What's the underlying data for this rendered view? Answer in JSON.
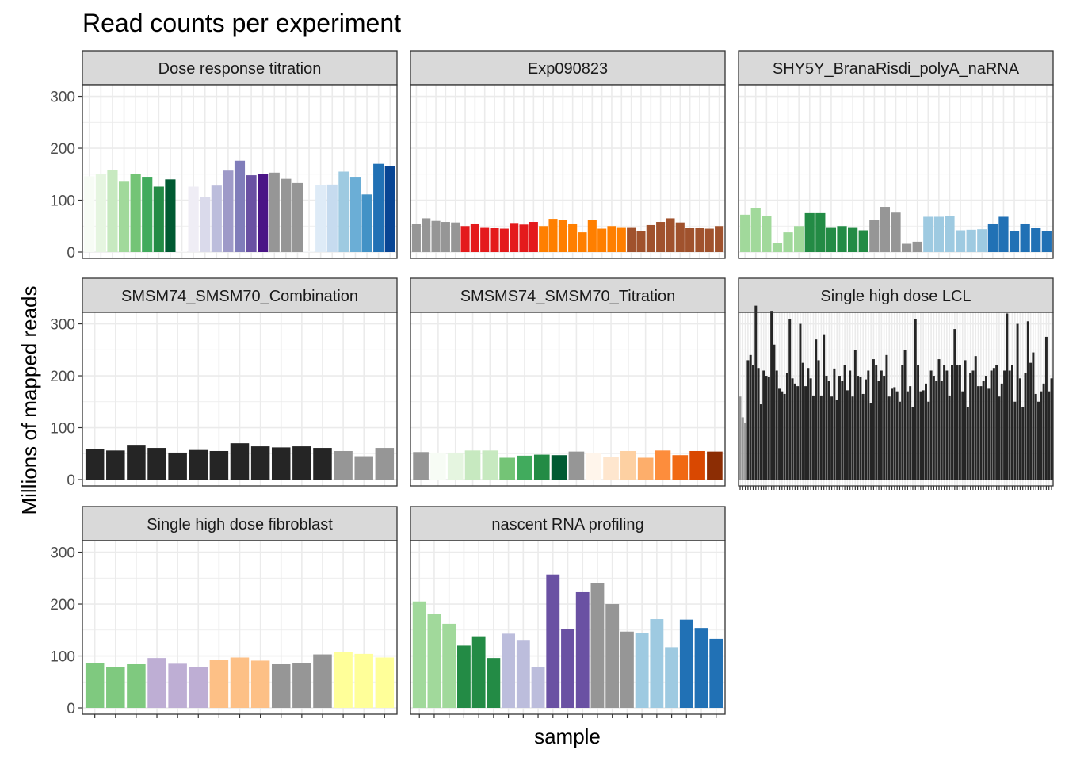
{
  "chart_data": {
    "type": "bar",
    "title": "Read counts per experiment",
    "xlabel": "sample",
    "ylabel": "Millions of mapped reads",
    "ylim": [
      0,
      310
    ],
    "y_ticks": [
      0,
      100,
      200,
      300
    ],
    "grid": true,
    "legend": "none",
    "facets": [
      {
        "name": "Dose response titration",
        "values": [
          146,
          150,
          158,
          137,
          150,
          145,
          126,
          140,
          1,
          126,
          106,
          128,
          157,
          176,
          148,
          151,
          153,
          141,
          133,
          1,
          129,
          130,
          155,
          145,
          111,
          170,
          165
        ],
        "colors": [
          "#f7fcf5",
          "#e5f5e0",
          "#c7e9c0",
          "#a1d99b",
          "#74c476",
          "#41ab5d",
          "#238b45",
          "#005a32",
          "#fcfbfd",
          "#efedf5",
          "#dadaeb",
          "#bcbddc",
          "#9e9ac8",
          "#807dba",
          "#6a51a3",
          "#4a1486",
          "#969696",
          "#969696",
          "#969696",
          "#f7fbff",
          "#deebf7",
          "#c6dbef",
          "#9ecae1",
          "#6baed6",
          "#4292c6",
          "#2171b5",
          "#084594"
        ]
      },
      {
        "name": "Exp090823",
        "values": [
          55,
          65,
          60,
          58,
          57,
          50,
          55,
          48,
          47,
          45,
          56,
          53,
          58,
          50,
          64,
          62,
          55,
          38,
          62,
          45,
          50,
          48,
          48,
          40,
          52,
          58,
          65,
          57,
          47,
          46,
          45,
          50
        ],
        "colors": [
          "#969696",
          "#969696",
          "#969696",
          "#969696",
          "#969696",
          "#e41a1c",
          "#e41a1c",
          "#e41a1c",
          "#e41a1c",
          "#e41a1c",
          "#e41a1c",
          "#e41a1c",
          "#e41a1c",
          "#ff7f00",
          "#ff7f00",
          "#ff7f00",
          "#ff7f00",
          "#ff7f00",
          "#ff7f00",
          "#ff7f00",
          "#ff7f00",
          "#ff7f00",
          "#a0522d",
          "#a0522d",
          "#a0522d",
          "#a0522d",
          "#a0522d",
          "#a0522d",
          "#a0522d",
          "#a0522d",
          "#a0522d",
          "#a0522d"
        ]
      },
      {
        "name": "SHY5Y_BranaRisdi_polyA_naRNA",
        "values": [
          72,
          85,
          70,
          18,
          38,
          50,
          75,
          75,
          48,
          50,
          48,
          42,
          62,
          87,
          76,
          16,
          20,
          68,
          68,
          70,
          42,
          43,
          44,
          55,
          68,
          40,
          55,
          47,
          40
        ],
        "colors": [
          "#a1d99b",
          "#a1d99b",
          "#a1d99b",
          "#a1d99b",
          "#a1d99b",
          "#a1d99b",
          "#238b45",
          "#238b45",
          "#238b45",
          "#238b45",
          "#238b45",
          "#238b45",
          "#969696",
          "#969696",
          "#969696",
          "#969696",
          "#969696",
          "#9ecae1",
          "#9ecae1",
          "#9ecae1",
          "#9ecae1",
          "#9ecae1",
          "#9ecae1",
          "#2171b5",
          "#2171b5",
          "#2171b5",
          "#2171b5",
          "#2171b5",
          "#2171b5"
        ]
      },
      {
        "name": "SMSM74_SMSM70_Combination",
        "values": [
          59,
          56,
          67,
          61,
          52,
          57,
          55,
          70,
          64,
          62,
          64,
          61,
          55,
          45,
          61
        ],
        "colors": [
          "#252525",
          "#252525",
          "#252525",
          "#252525",
          "#252525",
          "#252525",
          "#252525",
          "#252525",
          "#252525",
          "#252525",
          "#252525",
          "#252525",
          "#969696",
          "#969696",
          "#969696"
        ]
      },
      {
        "name": "SMSMS74_SMSM70_Titration",
        "values": [
          53,
          52,
          52,
          56,
          56,
          42,
          46,
          48,
          47,
          54,
          51,
          44,
          55,
          42,
          56,
          47,
          55,
          54
        ],
        "colors": [
          "#969696",
          "#f7fcf5",
          "#e5f5e0",
          "#c7e9c0",
          "#c7e9c0",
          "#74c476",
          "#41ab5d",
          "#238b45",
          "#005a32",
          "#969696",
          "#fff5eb",
          "#fee6ce",
          "#fdd0a2",
          "#fdae6b",
          "#fd8d3c",
          "#f16913",
          "#d94801",
          "#8c2d04"
        ]
      },
      {
        "name": "Single high dose LCL",
        "values": [
          160,
          120,
          110,
          230,
          240,
          220,
          335,
          215,
          145,
          210,
          200,
          198,
          325,
          260,
          210,
          175,
          170,
          165,
          205,
          310,
          195,
          185,
          180,
          300,
          225,
          180,
          215,
          195,
          162,
          270,
          230,
          162,
          280,
          200,
          190,
          160,
          214,
          153,
          200,
          190,
          220,
          172,
          210,
          160,
          250,
          200,
          198,
          165,
          193,
          210,
          148,
          232,
          220,
          190,
          210,
          200,
          240,
          160,
          175,
          178,
          170,
          150,
          220,
          250,
          170,
          180,
          140,
          310,
          220,
          170,
          172,
          185,
          150,
          210,
          200,
          190,
          232,
          190,
          220,
          210,
          162,
          220,
          290,
          220,
          220,
          170,
          230,
          140,
          205,
          210,
          238,
          180,
          180,
          190,
          200,
          175,
          210,
          215,
          220,
          160,
          185,
          210,
          320,
          210,
          220,
          150,
          300,
          195,
          140,
          205,
          305,
          225,
          245,
          165,
          150,
          170,
          185,
          275,
          170,
          195
        ],
        "colors": [
          "#969696",
          "#969696",
          "#969696"
        ]
      },
      {
        "name": "Single high dose fibroblast",
        "values": [
          86,
          78,
          84,
          96,
          85,
          78,
          92,
          97,
          91,
          84,
          86,
          103,
          107,
          104,
          97
        ],
        "colors": [
          "#7fc97f",
          "#7fc97f",
          "#7fc97f",
          "#beaed4",
          "#beaed4",
          "#beaed4",
          "#fdc086",
          "#fdc086",
          "#fdc086",
          "#969696",
          "#969696",
          "#969696",
          "#ffff99",
          "#ffff99",
          "#ffff99"
        ]
      },
      {
        "name": "nascent RNA profiling",
        "values": [
          205,
          181,
          162,
          120,
          138,
          96,
          143,
          131,
          78,
          257,
          152,
          223,
          240,
          200,
          147,
          145,
          171,
          117,
          170,
          154,
          133
        ],
        "colors": [
          "#a1d99b",
          "#a1d99b",
          "#a1d99b",
          "#238b45",
          "#238b45",
          "#238b45",
          "#bcbddc",
          "#bcbddc",
          "#bcbddc",
          "#6a51a3",
          "#6a51a3",
          "#6a51a3",
          "#969696",
          "#969696",
          "#969696",
          "#9ecae1",
          "#9ecae1",
          "#9ecae1",
          "#2171b5",
          "#2171b5",
          "#2171b5"
        ]
      }
    ]
  }
}
